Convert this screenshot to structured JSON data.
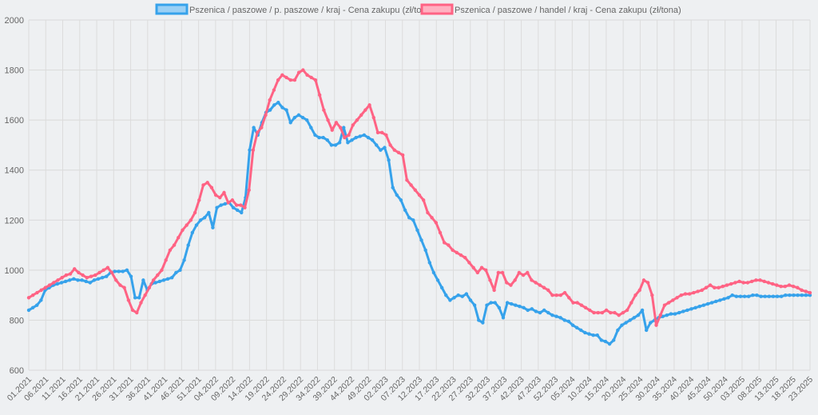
{
  "chart_data": {
    "type": "line",
    "title": "",
    "xlabel": "",
    "ylabel": "",
    "ylim": [
      600,
      2000
    ],
    "y_ticks": [
      600,
      800,
      1000,
      1200,
      1400,
      1600,
      1800,
      2000
    ],
    "grid": true,
    "legend_position": "top",
    "x_tick_labels": [
      "01.2021",
      "06.2021",
      "11.2021",
      "16.2021",
      "21.2021",
      "26.2021",
      "31.2021",
      "36.2021",
      "41.2021",
      "46.2021",
      "51.2021",
      "04.2022",
      "09.2022",
      "14.2022",
      "19.2022",
      "24.2022",
      "29.2022",
      "34.2022",
      "39.2022",
      "44.2022",
      "49.2022",
      "02.2023",
      "07.2023",
      "12.2023",
      "17.2023",
      "22.2023",
      "27.2023",
      "32.2023",
      "37.2023",
      "42.2023",
      "47.2023",
      "52.2023",
      "05.2024",
      "10.2024",
      "15.2024",
      "20.2024",
      "25.2024",
      "30.2024",
      "35.2024",
      "40.2024",
      "45.2024",
      "50.2024",
      "03.2025",
      "08.2025",
      "13.2025",
      "18.2025",
      "23.2025"
    ],
    "series": [
      {
        "name": "Pszenica / paszowe / p. paszowe / kraj - Cena zakupu (zł/tona)",
        "color": "#36a2eb",
        "fill": "#9ad0f5",
        "values": [
          840,
          850,
          860,
          880,
          920,
          930,
          940,
          945,
          950,
          955,
          960,
          965,
          960,
          960,
          955,
          950,
          960,
          965,
          970,
          975,
          990,
          995,
          995,
          995,
          1000,
          975,
          890,
          890,
          960,
          920,
          945,
          950,
          955,
          960,
          965,
          970,
          990,
          1000,
          1040,
          1100,
          1150,
          1180,
          1200,
          1210,
          1230,
          1170,
          1250,
          1260,
          1265,
          1270,
          1250,
          1240,
          1230,
          1290,
          1480,
          1570,
          1540,
          1590,
          1630,
          1640,
          1660,
          1670,
          1650,
          1640,
          1590,
          1610,
          1620,
          1610,
          1600,
          1570,
          1540,
          1530,
          1530,
          1520,
          1500,
          1500,
          1510,
          1570,
          1510,
          1520,
          1530,
          1535,
          1540,
          1530,
          1520,
          1500,
          1480,
          1490,
          1440,
          1330,
          1300,
          1280,
          1240,
          1210,
          1200,
          1160,
          1120,
          1080,
          1030,
          990,
          960,
          930,
          900,
          880,
          890,
          900,
          895,
          905,
          880,
          860,
          800,
          790,
          860,
          870,
          870,
          850,
          810,
          870,
          865,
          860,
          855,
          850,
          840,
          845,
          835,
          830,
          840,
          830,
          820,
          815,
          810,
          800,
          795,
          780,
          770,
          760,
          750,
          745,
          740,
          740,
          720,
          715,
          705,
          720,
          760,
          780,
          790,
          800,
          810,
          820,
          840,
          760,
          790,
          800,
          810,
          815,
          820,
          825,
          825,
          830,
          835,
          840,
          845,
          850,
          855,
          860,
          865,
          870,
          875,
          880,
          885,
          890,
          900,
          895,
          895,
          895,
          895,
          900,
          900,
          895,
          895,
          895,
          895,
          895,
          895,
          900,
          900,
          900,
          900,
          900,
          900,
          900
        ]
      },
      {
        "name": "Pszenica / paszowe / handel / kraj - Cena zakupu (zł/tona)",
        "color": "#ff6384",
        "fill": "#ffb1c1",
        "values": [
          890,
          900,
          910,
          920,
          930,
          940,
          950,
          960,
          970,
          980,
          985,
          1005,
          990,
          980,
          970,
          975,
          980,
          990,
          1000,
          1010,
          990,
          960,
          940,
          930,
          880,
          840,
          830,
          870,
          900,
          930,
          960,
          980,
          1000,
          1040,
          1080,
          1100,
          1130,
          1160,
          1180,
          1200,
          1230,
          1280,
          1340,
          1350,
          1330,
          1300,
          1290,
          1310,
          1270,
          1280,
          1260,
          1260,
          1250,
          1320,
          1480,
          1550,
          1570,
          1620,
          1680,
          1720,
          1760,
          1780,
          1770,
          1760,
          1760,
          1790,
          1800,
          1780,
          1770,
          1760,
          1700,
          1640,
          1600,
          1560,
          1590,
          1570,
          1530,
          1540,
          1580,
          1600,
          1620,
          1640,
          1660,
          1610,
          1550,
          1550,
          1540,
          1500,
          1480,
          1470,
          1460,
          1360,
          1340,
          1320,
          1300,
          1280,
          1230,
          1210,
          1190,
          1150,
          1110,
          1100,
          1080,
          1070,
          1060,
          1050,
          1030,
          1010,
          990,
          1010,
          1000,
          960,
          920,
          990,
          990,
          950,
          940,
          960,
          990,
          980,
          990,
          960,
          950,
          940,
          930,
          920,
          900,
          900,
          900,
          910,
          890,
          870,
          870,
          860,
          850,
          840,
          830,
          830,
          830,
          840,
          830,
          830,
          820,
          830,
          840,
          870,
          900,
          920,
          960,
          950,
          900,
          780,
          820,
          860,
          870,
          880,
          890,
          900,
          905,
          905,
          910,
          915,
          920,
          930,
          940,
          930,
          930,
          935,
          940,
          945,
          950,
          955,
          950,
          950,
          955,
          960,
          960,
          955,
          950,
          945,
          940,
          935,
          935,
          940,
          935,
          930,
          920,
          915,
          910
        ]
      }
    ]
  }
}
